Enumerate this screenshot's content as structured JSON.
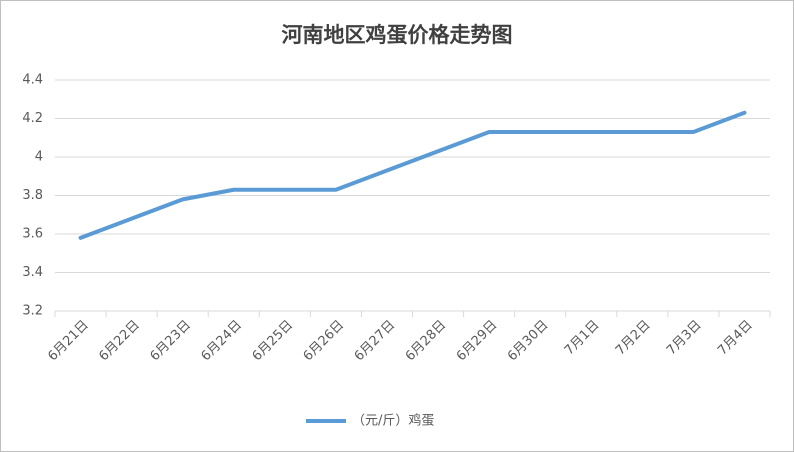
{
  "chart_data": {
    "type": "line",
    "title": "河南地区鸡蛋价格走势图",
    "categories": [
      "6月21日",
      "6月22日",
      "6月23日",
      "6月24日",
      "6月25日",
      "6月26日",
      "6月27日",
      "6月28日",
      "6月29日",
      "6月30日",
      "7月1日",
      "7月2日",
      "7月3日",
      "7月4日"
    ],
    "series": [
      {
        "name": "（元/斤）鸡蛋",
        "color": "#5b9bd5",
        "values": [
          3.58,
          3.68,
          3.78,
          3.83,
          3.83,
          3.83,
          3.93,
          4.03,
          4.13,
          4.13,
          4.13,
          4.13,
          4.13,
          4.23
        ]
      }
    ],
    "ylim": [
      3.2,
      4.4
    ],
    "yticks": [
      3.2,
      3.4,
      3.6,
      3.8,
      4,
      4.2,
      4.4
    ],
    "grid": true,
    "legend": "bottom"
  }
}
